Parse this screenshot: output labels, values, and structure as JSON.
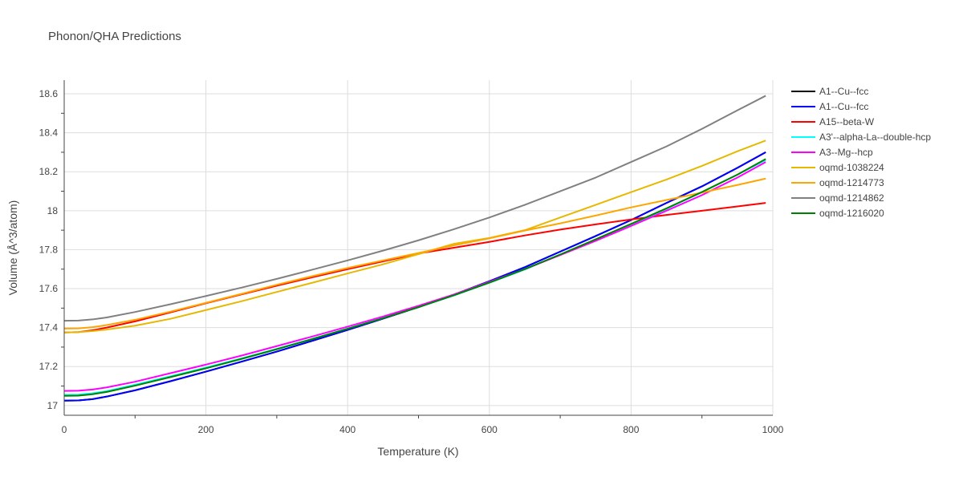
{
  "chart_data": {
    "type": "line",
    "title": "Phonon/QHA Predictions",
    "xlabel": "Temperature (K)",
    "ylabel": "Volume (Å^3/atom)",
    "xlim": [
      0,
      1000
    ],
    "ylim": [
      16.95,
      18.67
    ],
    "xticks": [
      0,
      200,
      400,
      600,
      800,
      1000
    ],
    "xtick_labels": [
      "0",
      "200",
      "400",
      "600",
      "800",
      "1000"
    ],
    "yticks": [
      17,
      17.2,
      17.4,
      17.6,
      17.8,
      18,
      18.2,
      18.4,
      18.6
    ],
    "ytick_labels": [
      "17",
      "17.2",
      "17.4",
      "17.6",
      "17.8",
      "18",
      "18.2",
      "18.4",
      "18.6"
    ],
    "grid": true,
    "legend_position": "right",
    "x": [
      0,
      20,
      40,
      60,
      100,
      150,
      200,
      250,
      300,
      350,
      400,
      450,
      500,
      550,
      600,
      650,
      700,
      750,
      800,
      850,
      900,
      950,
      990
    ],
    "series": [
      {
        "name": "A1--Cu--fcc",
        "color": "#000000",
        "values": [
          17.025,
          17.026,
          17.033,
          17.046,
          17.078,
          17.125,
          17.174,
          17.225,
          17.277,
          17.332,
          17.388,
          17.446,
          17.505,
          17.569,
          17.638,
          17.71,
          17.79,
          17.87,
          17.952,
          18.04,
          18.125,
          18.22,
          18.3
        ]
      },
      {
        "name": "A1--Cu--fcc",
        "color": "#0000ff",
        "values": [
          17.025,
          17.026,
          17.033,
          17.046,
          17.078,
          17.125,
          17.174,
          17.225,
          17.277,
          17.332,
          17.388,
          17.446,
          17.505,
          17.569,
          17.638,
          17.71,
          17.79,
          17.87,
          17.952,
          18.04,
          18.125,
          18.22,
          18.3
        ]
      },
      {
        "name": "A15--beta-W",
        "color": "#ff0000",
        "values": [
          17.375,
          17.377,
          17.386,
          17.4,
          17.432,
          17.478,
          17.525,
          17.57,
          17.615,
          17.658,
          17.7,
          17.74,
          17.78,
          17.81,
          17.84,
          17.873,
          17.903,
          17.93,
          17.955,
          17.978,
          18.0,
          18.022,
          18.04
        ]
      },
      {
        "name": "A3'--alpha-La--double-hcp",
        "color": "#00ffff",
        "values": [
          17.055,
          17.056,
          17.063,
          17.074,
          17.107,
          17.15,
          17.195,
          17.242,
          17.291,
          17.342,
          17.395,
          17.449,
          17.505,
          17.565,
          17.63,
          17.698,
          17.775,
          17.852,
          17.93,
          18.01,
          18.095,
          18.185,
          18.26
        ]
      },
      {
        "name": "A3--Mg--hcp",
        "color": "#ff00ff",
        "values": [
          17.075,
          17.076,
          17.082,
          17.093,
          17.122,
          17.166,
          17.21,
          17.256,
          17.305,
          17.354,
          17.405,
          17.457,
          17.512,
          17.57,
          17.635,
          17.7,
          17.772,
          17.845,
          17.922,
          18.0,
          18.08,
          18.17,
          18.25
        ]
      },
      {
        "name": "oqmd-1038224",
        "color": "#e6b800",
        "values": [
          17.375,
          17.377,
          17.382,
          17.39,
          17.41,
          17.445,
          17.49,
          17.535,
          17.583,
          17.63,
          17.678,
          17.725,
          17.777,
          17.83,
          17.86,
          17.9,
          17.965,
          18.03,
          18.095,
          18.16,
          18.23,
          18.305,
          18.36
        ]
      },
      {
        "name": "oqmd-1214773",
        "color": "#ffa500",
        "values": [
          17.395,
          17.396,
          17.402,
          17.413,
          17.44,
          17.482,
          17.527,
          17.573,
          17.62,
          17.664,
          17.706,
          17.745,
          17.783,
          17.822,
          17.858,
          17.898,
          17.935,
          17.975,
          18.017,
          18.055,
          18.093,
          18.132,
          18.165
        ]
      },
      {
        "name": "oqmd-1214862",
        "color": "#808080",
        "values": [
          17.435,
          17.436,
          17.442,
          17.452,
          17.48,
          17.52,
          17.562,
          17.605,
          17.65,
          17.697,
          17.745,
          17.795,
          17.848,
          17.905,
          17.965,
          18.03,
          18.1,
          18.17,
          18.25,
          18.33,
          18.42,
          18.515,
          18.59
        ]
      },
      {
        "name": "oqmd-1216020",
        "color": "#008000",
        "values": [
          17.05,
          17.051,
          17.058,
          17.07,
          17.102,
          17.146,
          17.191,
          17.239,
          17.289,
          17.341,
          17.394,
          17.448,
          17.505,
          17.566,
          17.631,
          17.7,
          17.775,
          17.853,
          17.932,
          18.012,
          18.096,
          18.185,
          18.265
        ]
      }
    ]
  }
}
